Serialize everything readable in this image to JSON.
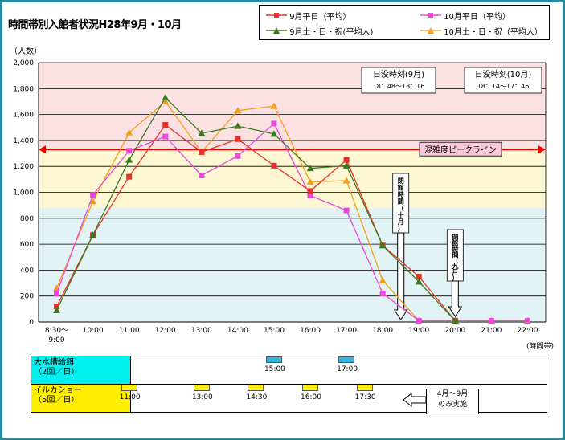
{
  "title": "時間帯別入館者状況H28年9月・10月",
  "unit_label": "（人数）",
  "x_unit_label": "(時間帯)",
  "colors": {
    "frame": "#2a8a9a",
    "band_high": "#fbe1e1",
    "band_mid": "#fdf7d3",
    "band_low": "#e1f3f4",
    "peak_line": "#ff0000",
    "peak_box": "#f9c9d9",
    "aquarium_bar": "#33b6e6",
    "dolphin_bar": "#ffee00",
    "aquarium_label_bg": "#00f0f0",
    "dolphin_label_bg": "#ffee00"
  },
  "legend": [
    {
      "name": "9月平日（平均）",
      "color": "#e8302a",
      "marker": "square"
    },
    {
      "name": "10月平日（平均）",
      "color": "#e84adb",
      "marker": "square"
    },
    {
      "name": "9月土・日・祝(平均人)",
      "color": "#3a7a1e",
      "marker": "triangle"
    },
    {
      "name": "10月土・日・祝（平均人）",
      "color": "#f5a01d",
      "marker": "triangle"
    }
  ],
  "chart_data": {
    "type": "line",
    "x": [
      "8:30～\n9:00",
      "10:00",
      "11:00",
      "12:00",
      "13:00",
      "14:00",
      "15:00",
      "16:00",
      "17:00",
      "18:00",
      "19:00",
      "20:00",
      "21:00",
      "22:00"
    ],
    "ylim": [
      0,
      2000
    ],
    "yticks": [
      "0",
      "200",
      "400",
      "600",
      "800",
      "1,000",
      "1,200",
      "1,400",
      "1,600",
      "1,800",
      "2,000"
    ],
    "series": [
      {
        "name": "9月平日（平均）",
        "color": "#e8302a",
        "marker": "square",
        "values": [
          120,
          670,
          1120,
          1520,
          1310,
          1410,
          1205,
          1010,
          1250,
          590,
          350,
          10,
          null,
          null
        ]
      },
      {
        "name": "10月平日（平均）",
        "color": "#e84adb",
        "marker": "square",
        "values": [
          220,
          980,
          1320,
          1430,
          1130,
          1280,
          1530,
          975,
          860,
          220,
          10,
          10,
          10,
          10
        ]
      },
      {
        "name": "9月土・日・祝(平均人)",
        "color": "#3a7a1e",
        "marker": "triangle",
        "values": [
          90,
          670,
          1250,
          1730,
          1455,
          1510,
          1450,
          1185,
          1205,
          590,
          310,
          10,
          null,
          null
        ]
      },
      {
        "name": "10月土・日・祝（平均人）",
        "color": "#f5a01d",
        "marker": "triangle",
        "values": [
          260,
          930,
          1460,
          1700,
          1310,
          1630,
          1665,
          1080,
          1090,
          320,
          10,
          10,
          10,
          10
        ]
      }
    ],
    "peak_line": {
      "label": "混雑度ピークライン",
      "value": 1330
    },
    "bands": [
      {
        "from": 1330,
        "to": 2000
      },
      {
        "from": 880,
        "to": 1330
      },
      {
        "from": 0,
        "to": 880
      }
    ],
    "sunset_sep": {
      "title": "日没時刻(9月)",
      "time": "18：48～18：16"
    },
    "sunset_oct": {
      "title": "日没時刻(10月)",
      "time": "18：14～17：46"
    },
    "close_oct": {
      "label": "閉館時間（十月）",
      "x": 18.5
    },
    "close_sep": {
      "label": "閉館時間（九月）",
      "x": 20.0
    }
  },
  "schedules": [
    {
      "label": "大水槽給餌\n（2回／日）",
      "bar_color": "#33b6e6",
      "label_bg": "#00f0f0",
      "times": [
        {
          "t": 15,
          "label": "15:00"
        },
        {
          "t": 17,
          "label": "17:00"
        }
      ]
    },
    {
      "label": "イルカショー\n（5回／日）",
      "bar_color": "#ffee00",
      "label_bg": "#ffee00",
      "times": [
        {
          "t": 11,
          "label": "11:00"
        },
        {
          "t": 13,
          "label": "13:00"
        },
        {
          "t": 14.5,
          "label": "14:30"
        },
        {
          "t": 16,
          "label": "16:00"
        },
        {
          "t": 17.5,
          "label": "17:30"
        }
      ]
    }
  ],
  "schedule_note": "4月～9月\nのみ実施"
}
